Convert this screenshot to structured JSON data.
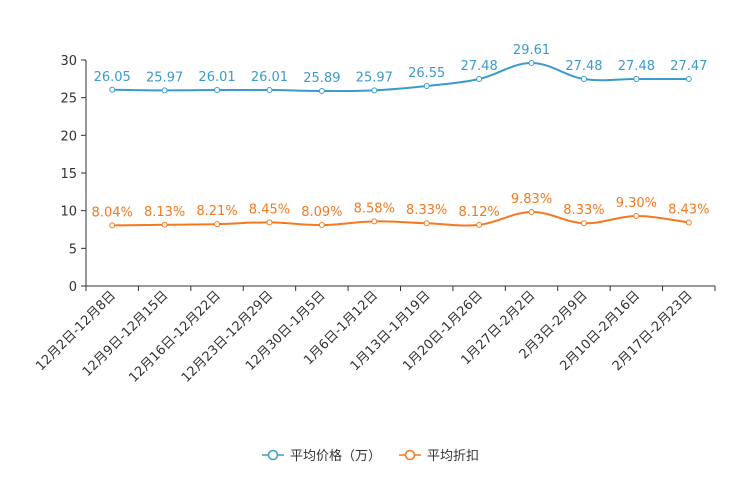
{
  "chart_data": {
    "type": "line",
    "title": "",
    "xlabel": "",
    "ylabel": "",
    "ylim": [
      0,
      30
    ],
    "yticks": [
      0,
      5,
      10,
      15,
      20,
      25,
      30
    ],
    "grid": false,
    "legend_position": "bottom-center",
    "categories": [
      "12月2日-12月8日",
      "12月9日-12月15日",
      "12月16日-12月22日",
      "12月23日-12月29日",
      "12月30日-1月5日",
      "1月6日-1月12日",
      "1月13日-1月19日",
      "1月20日-1月26日",
      "1月27日-2月2日",
      "2月3日-2月9日",
      "2月10日-2月16日",
      "2月17日-2月23日"
    ],
    "series": [
      {
        "name": "平均价格（万）",
        "color": "#3b9bcd",
        "values": [
          26.05,
          25.97,
          26.01,
          26.01,
          25.89,
          25.97,
          26.55,
          27.48,
          29.61,
          27.48,
          27.48,
          27.47
        ],
        "labels": [
          "26.05",
          "25.97",
          "26.01",
          "26.01",
          "25.89",
          "25.97",
          "26.55",
          "27.48",
          "29.61",
          "27.48",
          "27.48",
          "27.47"
        ]
      },
      {
        "name": "平均折扣",
        "color": "#f47920",
        "values": [
          8.04,
          8.13,
          8.21,
          8.45,
          8.09,
          8.58,
          8.33,
          8.12,
          9.83,
          8.33,
          9.3,
          8.43
        ],
        "labels": [
          "8.04%",
          "8.13%",
          "8.21%",
          "8.45%",
          "8.09%",
          "8.58%",
          "8.33%",
          "8.12%",
          "9.83%",
          "8.33%",
          "9.30%",
          "8.43%"
        ]
      }
    ]
  }
}
